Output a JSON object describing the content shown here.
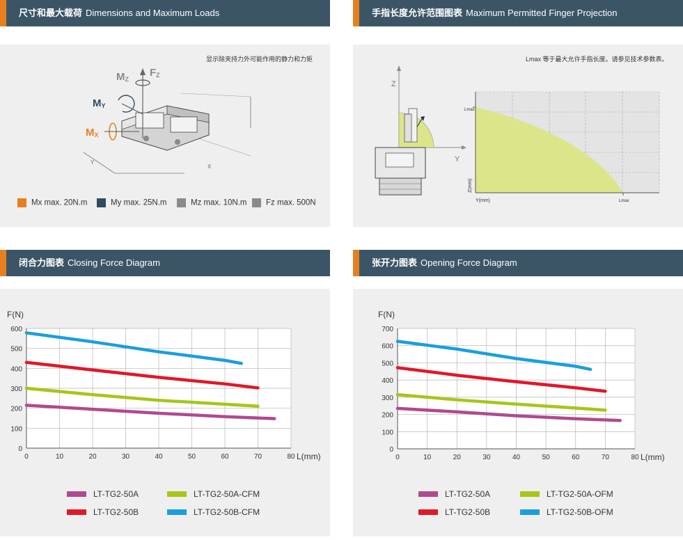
{
  "panels": {
    "loads": {
      "title_cn": "尺寸和最大载荷",
      "title_en": "Dimensions and Maximum Loads",
      "note": "显示除夹持力外可能作用的静力和力矩",
      "moment_labels": {
        "mz": "MZ",
        "fz": "FZ",
        "my": "MY",
        "mx": "MX",
        "x": "X",
        "y": "Y"
      },
      "legend": [
        {
          "label": "Mx max. 20N.m",
          "color": "#e6801f"
        },
        {
          "label": "My max. 25N.m",
          "color": "#2f4b5e"
        },
        {
          "label": "Mz max. 10N.m",
          "color": "#8a8a8a"
        },
        {
          "label": "Fz max. 500N",
          "color": "#8a8a8a"
        }
      ]
    },
    "projection": {
      "title_cn": "手指长度允许范围图表",
      "title_en": "Maximum Permitted Finger Projection",
      "note": "Lmax 等于最大允许手指长度。请参见技术参数表。",
      "axis_z": "Z",
      "axis_y": "Y",
      "ylabel": "Z(mm)",
      "xlabel": "Y(mm)",
      "lmax_y": "Lmax",
      "lmax_x": "Lmax",
      "fill_color": "#dde58a"
    },
    "closing": {
      "title_cn": "闭合力图表",
      "title_en": "Closing Force Diagram"
    },
    "opening": {
      "title_cn": "张开力图表",
      "title_en": "Opening Force Diagram"
    }
  },
  "chart_data": [
    {
      "type": "line",
      "title": "Closing Force Diagram",
      "ylabel": "F(N)",
      "xlabel": "L(mm)",
      "xlim": [
        0,
        80
      ],
      "ylim": [
        0,
        600
      ],
      "xticks": [
        0,
        10,
        20,
        30,
        40,
        50,
        60,
        70,
        80
      ],
      "yticks": [
        0,
        100,
        200,
        300,
        400,
        500,
        600
      ],
      "grid": true,
      "legend_position": "bottom",
      "series": [
        {
          "name": "LT-TG2-50A",
          "color": "#b04a8e",
          "x": [
            0,
            20,
            40,
            60,
            75
          ],
          "y": [
            215,
            195,
            175,
            158,
            148
          ]
        },
        {
          "name": "LT-TG2-50A-CFM",
          "color": "#a6c61a",
          "x": [
            0,
            20,
            40,
            60,
            70
          ],
          "y": [
            300,
            268,
            240,
            220,
            210
          ]
        },
        {
          "name": "LT-TG2-50B",
          "color": "#e0182a",
          "x": [
            0,
            20,
            40,
            60,
            70
          ],
          "y": [
            430,
            392,
            355,
            322,
            302
          ]
        },
        {
          "name": "LT-TG2-50B-CFM",
          "color": "#1a9fdc",
          "x": [
            0,
            20,
            40,
            60,
            65
          ],
          "y": [
            578,
            533,
            483,
            440,
            425
          ]
        }
      ]
    },
    {
      "type": "line",
      "title": "Opening Force Diagram",
      "ylabel": "F(N)",
      "xlabel": "L(mm)",
      "xlim": [
        0,
        80
      ],
      "ylim": [
        0,
        700
      ],
      "xticks": [
        0,
        10,
        20,
        30,
        40,
        50,
        60,
        70,
        80
      ],
      "yticks": [
        0,
        100,
        200,
        300,
        400,
        500,
        600,
        700
      ],
      "grid": true,
      "legend_position": "bottom",
      "series": [
        {
          "name": "LT-TG2-50A",
          "color": "#b04a8e",
          "x": [
            0,
            20,
            40,
            60,
            75
          ],
          "y": [
            235,
            215,
            192,
            175,
            165
          ]
        },
        {
          "name": "LT-TG2-50A-OFM",
          "color": "#a6c61a",
          "x": [
            0,
            20,
            40,
            60,
            70
          ],
          "y": [
            315,
            285,
            260,
            237,
            225
          ]
        },
        {
          "name": "LT-TG2-50B",
          "color": "#e0182a",
          "x": [
            0,
            20,
            40,
            60,
            70
          ],
          "y": [
            472,
            428,
            390,
            355,
            335
          ]
        },
        {
          "name": "LT-TG2-50B-OFM",
          "color": "#1a9fdc",
          "x": [
            0,
            20,
            40,
            60,
            65
          ],
          "y": [
            625,
            580,
            525,
            480,
            462
          ]
        }
      ]
    }
  ]
}
